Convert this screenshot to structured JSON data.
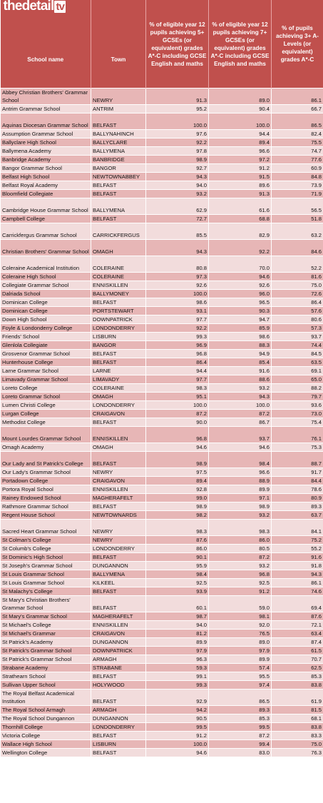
{
  "logo": {
    "text": "thedetail",
    "suffix": "tv"
  },
  "headers": {
    "school": "School name",
    "town": "Town",
    "gcse5": "% of eligible year 12 pupils achieving 5+ GCSEs (or equivalent) grades A*-C including GCSE English and maths",
    "gcse7": "% of eligible year 12 pupils achieving 7+ GCSEs (or equivalent) grades A*-C including GCSE English and maths",
    "alevel": "% of pupils achieving 3+ A-Levels (or equivalent) grades A*-C"
  },
  "rows": [
    {
      "name": "Abbey Christian Brothers' Grammar School",
      "town": "NEWRY",
      "g5": "91.3",
      "g7": "89.0",
      "a": "86.1",
      "tall": true
    },
    {
      "name": "Antrim Grammar School",
      "town": "ANTRIM",
      "g5": "95.2",
      "g7": "90.4",
      "a": "66.7"
    },
    {
      "name": "Aquinas Diocesan Grammar School",
      "town": "BELFAST",
      "g5": "100.0",
      "g7": "100.0",
      "a": "86.5",
      "tall": true
    },
    {
      "name": "Assumption Grammar School",
      "town": "BALLYNAHINCH",
      "g5": "97.6",
      "g7": "94.4",
      "a": "82.4"
    },
    {
      "name": "Ballyclare High School",
      "town": "BALLYCLARE",
      "g5": "92.2",
      "g7": "89.4",
      "a": "75.5"
    },
    {
      "name": "Ballymena Academy",
      "town": "BALLYMENA",
      "g5": "97.8",
      "g7": "96.6",
      "a": "74.7"
    },
    {
      "name": "Banbridge Academy",
      "town": "BANBRIDGE",
      "g5": "98.9",
      "g7": "97.2",
      "a": "77.6"
    },
    {
      "name": "Bangor Grammar School",
      "town": "BANGOR",
      "g5": "92.7",
      "g7": "91.2",
      "a": "60.9"
    },
    {
      "name": "Belfast High School",
      "town": "NEWTOWNABBEY",
      "g5": "94.3",
      "g7": "91.5",
      "a": "84.8"
    },
    {
      "name": "Belfast Royal Academy",
      "town": "BELFAST",
      "g5": "94.0",
      "g7": "89.6",
      "a": "73.9"
    },
    {
      "name": "Bloomfield Collegiate",
      "town": "BELFAST",
      "g5": "93.2",
      "g7": "91.3",
      "a": "71.9"
    },
    {
      "name": "Cambridge House Grammar School",
      "town": "BALLYMENA",
      "g5": "62.9",
      "g7": "61.6",
      "a": "56.5",
      "tall": true
    },
    {
      "name": "Campbell College",
      "town": "BELFAST",
      "g5": "72.7",
      "g7": "68.8",
      "a": "51.8"
    },
    {
      "name": "Carrickfergus Grammar School",
      "town": "CARRICKFERGUS",
      "g5": "85.5",
      "g7": "82.9",
      "a": "63.2",
      "tall": true
    },
    {
      "name": "Christian Brothers' Grammar School",
      "town": "OMAGH",
      "g5": "94.3",
      "g7": "92.2",
      "a": "84.6",
      "tall": true
    },
    {
      "name": "Coleraine Academical Institution",
      "town": "COLERAINE",
      "g5": "80.8",
      "g7": "70.0",
      "a": "52.2",
      "tall": true
    },
    {
      "name": "Coleraine High School",
      "town": "COLERAINE",
      "g5": "97.3",
      "g7": "94.6",
      "a": "81.6"
    },
    {
      "name": "Collegiate Grammar School",
      "town": "ENNISKILLEN",
      "g5": "92.6",
      "g7": "92.6",
      "a": "75.0"
    },
    {
      "name": "Dalriada School",
      "town": "BALLYMONEY",
      "g5": "100.0",
      "g7": "96.0",
      "a": "72.6"
    },
    {
      "name": "Dominican College",
      "town": "BELFAST",
      "g5": "98.6",
      "g7": "96.5",
      "a": "86.4"
    },
    {
      "name": "Dominican College",
      "town": "PORTSTEWART",
      "g5": "93.1",
      "g7": "90.3",
      "a": "57.6"
    },
    {
      "name": "Down High School",
      "town": "DOWNPATRICK",
      "g5": "97.7",
      "g7": "94.7",
      "a": "80.6"
    },
    {
      "name": "Foyle & Londonderry College",
      "town": "LONDONDERRY",
      "g5": "92.2",
      "g7": "85.9",
      "a": "57.3"
    },
    {
      "name": "Friends' School",
      "town": "LISBURN",
      "g5": "99.3",
      "g7": "98.6",
      "a": "93.7"
    },
    {
      "name": "Glenlola Collegiate",
      "town": "BANGOR",
      "g5": "96.9",
      "g7": "88.3",
      "a": "74.4"
    },
    {
      "name": "Grosvenor Grammar School",
      "town": "BELFAST",
      "g5": "96.8",
      "g7": "94.9",
      "a": "84.5"
    },
    {
      "name": "Hunterhouse College",
      "town": "BELFAST",
      "g5": "86.4",
      "g7": "85.4",
      "a": "63.5"
    },
    {
      "name": "Larne Grammar School",
      "town": "LARNE",
      "g5": "94.4",
      "g7": "91.6",
      "a": "69.1"
    },
    {
      "name": "Limavady Grammar School",
      "town": "LIMAVADY",
      "g5": "97.7",
      "g7": "88.6",
      "a": "65.0"
    },
    {
      "name": "Loreto College",
      "town": "COLERAINE",
      "g5": "98.3",
      "g7": "93.2",
      "a": "88.2"
    },
    {
      "name": "Loreto Grammar School",
      "town": "OMAGH",
      "g5": "95.1",
      "g7": "94.3",
      "a": "79.7"
    },
    {
      "name": "Lumen Christi College",
      "town": "LONDONDERRY",
      "g5": "100.0",
      "g7": "100.0",
      "a": "93.6"
    },
    {
      "name": "Lurgan College",
      "town": "CRAIGAVON",
      "g5": "87.2",
      "g7": "87.2",
      "a": "73.0"
    },
    {
      "name": "Methodist College",
      "town": "BELFAST",
      "g5": "90.0",
      "g7": "86.7",
      "a": "75.4"
    },
    {
      "name": "Mount Lourdes Grammar School",
      "town": "ENNISKILLEN",
      "g5": "96.8",
      "g7": "93.7",
      "a": "76.1",
      "tall": true
    },
    {
      "name": "Omagh Academy",
      "town": "OMAGH",
      "g5": "94.6",
      "g7": "94.6",
      "a": "75.3"
    },
    {
      "name": "Our Lady and St Patrick's College",
      "town": "BELFAST",
      "g5": "98.9",
      "g7": "98.4",
      "a": "88.7",
      "tall": true
    },
    {
      "name": "Our Lady's Grammar School",
      "town": "NEWRY",
      "g5": "97.5",
      "g7": "96.6",
      "a": "91.7"
    },
    {
      "name": "Portadown College",
      "town": "CRAIGAVON",
      "g5": "89.4",
      "g7": "88.9",
      "a": "84.4"
    },
    {
      "name": "Portora Royal School",
      "town": "ENNISKILLEN",
      "g5": "92.8",
      "g7": "89.9",
      "a": "78.6"
    },
    {
      "name": "Rainey Endowed School",
      "town": "MAGHERAFELT",
      "g5": "99.0",
      "g7": "97.1",
      "a": "80.9"
    },
    {
      "name": "Rathmore Grammar School",
      "town": "BELFAST",
      "g5": "98.9",
      "g7": "98.9",
      "a": "89.3"
    },
    {
      "name": "Regent House School",
      "town": "NEWTOWNARDS",
      "g5": "98.2",
      "g7": "93.2",
      "a": "63.7"
    },
    {
      "name": "Sacred Heart Grammar School",
      "town": "NEWRY",
      "g5": "98.3",
      "g7": "98.3",
      "a": "84.1",
      "tall": true
    },
    {
      "name": "St Colman's College",
      "town": "NEWRY",
      "g5": "87.6",
      "g7": "86.0",
      "a": "75.2"
    },
    {
      "name": "St Columb's College",
      "town": "LONDONDERRY",
      "g5": "86.0",
      "g7": "80.5",
      "a": "55.2"
    },
    {
      "name": "St Dominic's High School",
      "town": "BELFAST",
      "g5": "90.1",
      "g7": "87.2",
      "a": "91.6"
    },
    {
      "name": "St Joseph's Grammar School",
      "town": "DUNGANNON",
      "g5": "95.9",
      "g7": "93.2",
      "a": "91.8"
    },
    {
      "name": "St Louis Grammar School",
      "town": "BALLYMENA",
      "g5": "98.4",
      "g7": "96.8",
      "a": "94.3"
    },
    {
      "name": "St Louis Grammar School",
      "town": "KILKEEL",
      "g5": "92.5",
      "g7": "92.5",
      "a": "86.1"
    },
    {
      "name": "St Malachy's College",
      "town": "BELFAST",
      "g5": "93.9",
      "g7": "91.2",
      "a": "74.6"
    },
    {
      "name": "St Mary's Christian Brothers' Grammar School",
      "town": "BELFAST",
      "g5": "60.1",
      "g7": "59.0",
      "a": "69.4",
      "tall": true
    },
    {
      "name": "St Mary's Grammar School",
      "town": "MAGHERAFELT",
      "g5": "98.7",
      "g7": "98.1",
      "a": "87.6"
    },
    {
      "name": "St Michael's College",
      "town": "ENNISKILLEN",
      "g5": "94.0",
      "g7": "92.0",
      "a": "72.1"
    },
    {
      "name": "St Michael's Grammar",
      "town": "CRAIGAVON",
      "g5": "81.2",
      "g7": "76.5",
      "a": "63.4"
    },
    {
      "name": "St Patrick's Academy",
      "town": "DUNGANNON",
      "g5": "89.9",
      "g7": "89.0",
      "a": "87.4"
    },
    {
      "name": "St Patrick's Grammar School",
      "town": "DOWNPATRICK",
      "g5": "97.9",
      "g7": "97.9",
      "a": "61.5"
    },
    {
      "name": "St Patrick's Grammar School",
      "town": "ARMAGH",
      "g5": "96.3",
      "g7": "89.9",
      "a": "70.7"
    },
    {
      "name": "Strabane Academy",
      "town": "STRABANE",
      "g5": "59.3",
      "g7": "57.4",
      "a": "62.5"
    },
    {
      "name": "Strathearn School",
      "town": "BELFAST",
      "g5": "99.1",
      "g7": "95.5",
      "a": "85.3"
    },
    {
      "name": "Sullivan Upper School",
      "town": "HOLYWOOD",
      "g5": "99.3",
      "g7": "97.4",
      "a": "83.8"
    },
    {
      "name": "The Royal Belfast Academical Institution",
      "town": "BELFAST",
      "g5": "92.9",
      "g7": "86.5",
      "a": "61.9",
      "tall": true
    },
    {
      "name": "The Royal School Armagh",
      "town": "ARMAGH",
      "g5": "94.2",
      "g7": "89.3",
      "a": "81.5"
    },
    {
      "name": "The Royal School Dungannon",
      "town": "DUNGANNON",
      "g5": "90.5",
      "g7": "85.3",
      "a": "68.1"
    },
    {
      "name": "Thornhill College",
      "town": "LONDONDERRY",
      "g5": "99.5",
      "g7": "99.5",
      "a": "83.8"
    },
    {
      "name": "Victoria College",
      "town": "BELFAST",
      "g5": "91.2",
      "g7": "87.2",
      "a": "83.3"
    },
    {
      "name": "Wallace High School",
      "town": "LISBURN",
      "g5": "100.0",
      "g7": "99.4",
      "a": "75.0"
    },
    {
      "name": "Wellington College",
      "town": "BELFAST",
      "g5": "94.6",
      "g7": "83.0",
      "a": "76.3"
    }
  ]
}
